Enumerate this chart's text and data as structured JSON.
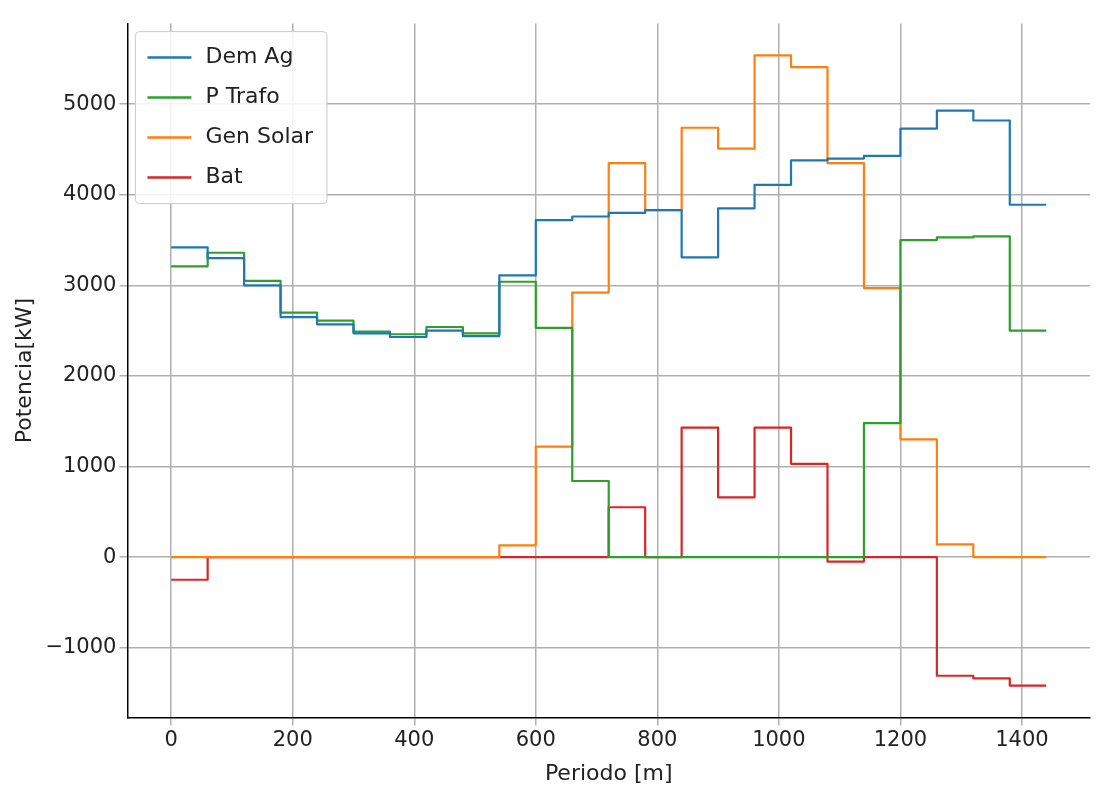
{
  "chart_data": {
    "type": "step",
    "xlabel": "Periodo [m]",
    "ylabel": "Potencia[kW]",
    "x": [
      0,
      60,
      120,
      180,
      240,
      300,
      360,
      420,
      480,
      540,
      600,
      660,
      720,
      780,
      840,
      900,
      960,
      1020,
      1080,
      1140,
      1200,
      1260,
      1320,
      1380,
      1440
    ],
    "series": [
      {
        "name": "Dem Ag",
        "color": "#1f77b4",
        "values": [
          3420,
          3300,
          3000,
          2650,
          2570,
          2470,
          2430,
          2500,
          2440,
          3110,
          3720,
          3760,
          3800,
          3830,
          3310,
          3850,
          4110,
          4380,
          4400,
          4430,
          4730,
          4930,
          4820,
          3890,
          3890
        ]
      },
      {
        "name": "P Trafo",
        "color": "#2ca02c",
        "values": [
          3210,
          3360,
          3050,
          2700,
          2610,
          2490,
          2460,
          2540,
          2470,
          3040,
          2530,
          840,
          0,
          0,
          0,
          0,
          0,
          0,
          0,
          1480,
          3500,
          3530,
          3540,
          2500,
          2500
        ]
      },
      {
        "name": "Gen Solar",
        "color": "#ff7f0e",
        "values": [
          0,
          0,
          0,
          0,
          0,
          0,
          0,
          0,
          0,
          130,
          1220,
          2920,
          4350,
          3830,
          4740,
          4510,
          5540,
          5410,
          4350,
          2970,
          1300,
          140,
          0,
          0,
          0
        ]
      },
      {
        "name": "Bat",
        "color": "#d62728",
        "values": [
          -250,
          0,
          0,
          0,
          0,
          0,
          0,
          0,
          0,
          0,
          0,
          0,
          550,
          0,
          1430,
          660,
          1430,
          1030,
          -50,
          0,
          0,
          -1310,
          -1340,
          -1420,
          -1420
        ]
      }
    ],
    "xlim": [
      -72,
      1512
    ],
    "xticks": [
      0,
      200,
      400,
      600,
      800,
      1000,
      1200,
      1400
    ],
    "ylim": [
      -1770,
      5890
    ],
    "yticks": [
      -1000,
      0,
      1000,
      2000,
      3000,
      4000,
      5000
    ],
    "grid": true,
    "legend": "top left",
    "marker": "none",
    "line_style": "solid"
  }
}
